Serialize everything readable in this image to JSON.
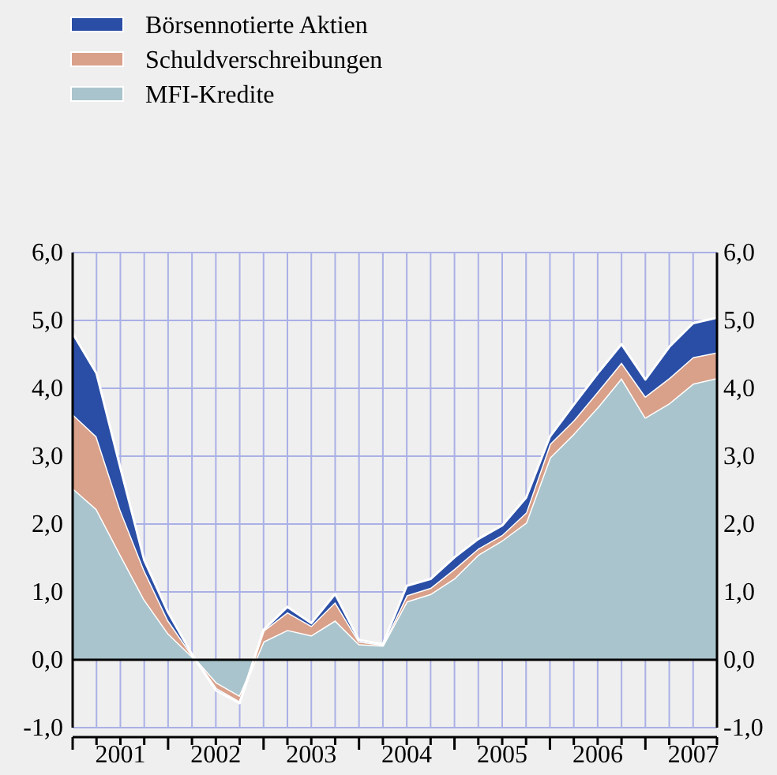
{
  "chart_data": {
    "type": "area",
    "stacked": true,
    "x": [
      2001,
      2001.25,
      2001.5,
      2001.75,
      2002,
      2002.25,
      2002.5,
      2002.75,
      2003,
      2003.25,
      2003.5,
      2003.75,
      2004,
      2004.25,
      2004.5,
      2004.75,
      2005,
      2005.25,
      2005.5,
      2005.75,
      2006,
      2006.25,
      2006.5,
      2006.75,
      2007,
      2007.25,
      2007.5,
      2007.75
    ],
    "series": [
      {
        "name": "MFI-Kredite",
        "color": "#a9c4cc",
        "values": [
          2.53,
          2.22,
          1.55,
          0.89,
          0.39,
          0.05,
          -0.35,
          -0.55,
          0.27,
          0.44,
          0.36,
          0.58,
          0.23,
          0.21,
          0.86,
          0.97,
          1.2,
          1.55,
          1.76,
          2.02,
          2.98,
          3.33,
          3.72,
          4.15,
          3.57,
          3.78,
          4.07,
          4.15
        ]
      },
      {
        "name": "Schuldverschreibungen",
        "color": "#d9a08a",
        "values": [
          1.09,
          1.07,
          0.66,
          0.43,
          0.19,
          0.02,
          -0.08,
          -0.08,
          0.16,
          0.26,
          0.14,
          0.27,
          0.04,
          0.01,
          0.09,
          0.09,
          0.14,
          0.09,
          0.08,
          0.15,
          0.2,
          0.2,
          0.23,
          0.23,
          0.31,
          0.37,
          0.39,
          0.38
        ]
      },
      {
        "name": "Börsennotierte Aktien",
        "color": "#2a4ea6",
        "values": [
          1.19,
          0.93,
          0.62,
          0.15,
          0.12,
          0.01,
          -0.02,
          -0.01,
          0.01,
          0.08,
          0.04,
          0.12,
          0.02,
          0.01,
          0.14,
          0.13,
          0.17,
          0.14,
          0.14,
          0.22,
          0.11,
          0.23,
          0.27,
          0.27,
          0.25,
          0.46,
          0.5,
          0.51
        ]
      }
    ],
    "xlim": [
      2001,
      2007.75
    ],
    "xticks": [
      {
        "value": 2001,
        "label": null
      },
      {
        "value": 2001.25,
        "label": null
      },
      {
        "value": 2001.5,
        "label": "2001"
      },
      {
        "value": 2001.75,
        "label": null
      },
      {
        "value": 2002,
        "label": null
      },
      {
        "value": 2002.25,
        "label": null
      },
      {
        "value": 2002.5,
        "label": "2002"
      },
      {
        "value": 2002.75,
        "label": null
      },
      {
        "value": 2003,
        "label": null
      },
      {
        "value": 2003.25,
        "label": null
      },
      {
        "value": 2003.5,
        "label": "2003"
      },
      {
        "value": 2003.75,
        "label": null
      },
      {
        "value": 2004,
        "label": null
      },
      {
        "value": 2004.25,
        "label": null
      },
      {
        "value": 2004.5,
        "label": "2004"
      },
      {
        "value": 2004.75,
        "label": null
      },
      {
        "value": 2005,
        "label": null
      },
      {
        "value": 2005.25,
        "label": null
      },
      {
        "value": 2005.5,
        "label": "2005"
      },
      {
        "value": 2005.75,
        "label": null
      },
      {
        "value": 2006,
        "label": null
      },
      {
        "value": 2006.25,
        "label": null
      },
      {
        "value": 2006.5,
        "label": "2006"
      },
      {
        "value": 2006.75,
        "label": null
      },
      {
        "value": 2007,
        "label": null
      },
      {
        "value": 2007.25,
        "label": null
      },
      {
        "value": 2007.5,
        "label": "2007"
      },
      {
        "value": 2007.75,
        "label": null
      }
    ],
    "ylim": [
      -1,
      6
    ],
    "yticks": [
      {
        "value": -1,
        "label": "-1,0"
      },
      {
        "value": 0,
        "label": "0,0"
      },
      {
        "value": 1,
        "label": "1,0"
      },
      {
        "value": 2,
        "label": "2,0"
      },
      {
        "value": 3,
        "label": "3,0"
      },
      {
        "value": 4,
        "label": "4,0"
      },
      {
        "value": 5,
        "label": "5,0"
      },
      {
        "value": 6,
        "label": "6,0"
      }
    ],
    "y2lim": [
      -1,
      6
    ],
    "y2ticks": [
      {
        "value": -1,
        "label": "-1,0"
      },
      {
        "value": 0,
        "label": "0,0"
      },
      {
        "value": 1,
        "label": "1,0"
      },
      {
        "value": 2,
        "label": "2,0"
      },
      {
        "value": 3,
        "label": "3,0"
      },
      {
        "value": 4,
        "label": "4,0"
      },
      {
        "value": 5,
        "label": "5,0"
      },
      {
        "value": 6,
        "label": "6,0"
      }
    ],
    "grid": true,
    "legend": "top left"
  }
}
